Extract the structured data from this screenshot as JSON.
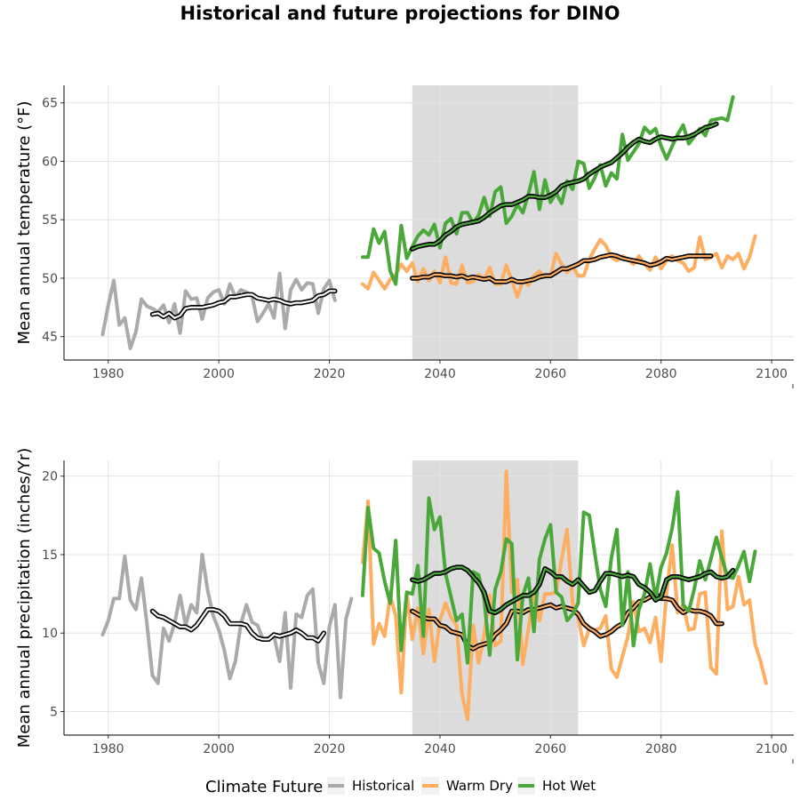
{
  "chart_data": {
    "title": "Historical and future projections for DINO",
    "legend": {
      "title": "Climate Future",
      "position": "bottom",
      "entries": [
        {
          "name": "Historical",
          "color": "#aaaaaa"
        },
        {
          "name": "Warm Dry",
          "color": "#fdae61"
        },
        {
          "name": "Hot Wet",
          "color": "#4aa83a"
        }
      ]
    },
    "panels": [
      {
        "type": "line",
        "ylabel": "Mean annual temperature (°F)",
        "xlim": [
          1972,
          2104
        ],
        "ylim": [
          43,
          66.5
        ],
        "xticks": [
          1980,
          2000,
          2020,
          2040,
          2060,
          2080,
          2100
        ],
        "yticks": [
          45,
          50,
          55,
          60,
          65
        ],
        "grid": true,
        "shaded_period": [
          2035,
          2065
        ],
        "series": [
          {
            "name": "Historical",
            "color": "#aaaaaa",
            "x_start": 1979,
            "values": [
              45.2,
              47.7,
              49.8,
              46,
              46.6,
              44,
              45.4,
              48.2,
              47.6,
              47.4,
              47.1,
              47.7,
              46.2,
              47.8,
              45.3,
              48.9,
              48.2,
              48.3,
              46.5,
              48.3,
              48.8,
              49,
              47.8,
              49.5,
              48.4,
              49,
              48.8,
              48.5,
              46.3,
              47,
              47.8,
              46.6,
              50.4,
              45.7,
              49,
              49.9,
              49,
              49.6,
              49.5,
              47,
              49.1,
              49.8,
              48.1
            ]
          },
          {
            "name": "Historical 10-yr mean",
            "color": "#000000",
            "x_start": 1988,
            "values": [
              46.9,
              47,
              46.7,
              47,
              46.6,
              46.8,
              47.4,
              47.5,
              47.5,
              47.5,
              47.6,
              47.7,
              47.9,
              48,
              48.4,
              48.4,
              48.5,
              48.6,
              48.6,
              48.3,
              48.2,
              48.1,
              48.2,
              48.1,
              47.9,
              47.8,
              47.9,
              47.9,
              48,
              48.1,
              48.5,
              48.6,
              48.9,
              48.9
            ]
          },
          {
            "name": "Warm Dry",
            "color": "#fdae61",
            "x_start": 2026,
            "values": [
              49.5,
              49.1,
              50.5,
              49.8,
              49.1,
              49.9,
              50.3,
              51.2,
              50.6,
              51.3,
              49.7,
              50.8,
              49.8,
              50.6,
              49.6,
              51.8,
              49.6,
              49.5,
              51.1,
              49.6,
              49.7,
              50.3,
              49.9,
              50.9,
              49.5,
              49.5,
              51.1,
              49.8,
              48.4,
              49.8,
              49.4,
              50.2,
              50.6,
              50.1,
              50.2,
              52.1,
              51.2,
              50.5,
              51,
              50.2,
              50.2,
              51.6,
              52.5,
              53.3,
              52.8,
              51.8,
              51.5,
              51.9,
              51.6,
              51.2,
              51.9,
              51.2,
              50.7,
              51.8,
              50.8,
              51.5,
              51.9,
              51.5,
              51.3,
              50.6,
              50.9,
              53.5,
              51.6,
              51.8,
              52.1,
              50.9,
              51.9,
              51.6,
              52.1,
              50.8,
              51.8,
              53.6
            ]
          },
          {
            "name": "Warm Dry 10-yr mean",
            "color": "#000000",
            "x_start": 2035,
            "values": [
              50,
              50,
              50.1,
              50.1,
              50.3,
              50.3,
              50.2,
              50.2,
              50.1,
              50.2,
              50,
              50.1,
              50,
              49.9,
              50,
              49.7,
              49.7,
              49.7,
              49.9,
              49.7,
              49.7,
              49.8,
              49.9,
              50.1,
              50.2,
              50.2,
              50.5,
              50.8,
              50.8,
              51,
              51.2,
              51.5,
              51.5,
              51.6,
              51.8,
              51.9,
              52,
              51.9,
              51.7,
              51.6,
              51.5,
              51.4,
              51.3,
              51.1,
              51.2,
              51.4,
              51.7,
              51.6,
              51.7,
              51.8,
              51.9,
              51.9,
              51.9,
              51.9,
              51.9
            ]
          },
          {
            "name": "Hot Wet",
            "color": "#4aa83a",
            "x_start": 2026,
            "values": [
              51.8,
              51.8,
              54.2,
              53,
              54,
              50.6,
              49.5,
              54.5,
              51.7,
              52.7,
              53.6,
              54.1,
              53.7,
              54.6,
              52.6,
              54.7,
              55.1,
              53.8,
              55.6,
              55.6,
              54.7,
              55.4,
              56.9,
              55.3,
              57.4,
              57.8,
              54.7,
              55.3,
              56.3,
              55.6,
              57.2,
              59.1,
              55.9,
              58.4,
              56.5,
              57.3,
              56.4,
              58.3,
              57.6,
              60,
              59.8,
              57.7,
              58.6,
              59.7,
              57.9,
              59,
              58.5,
              62.3,
              60.1,
              60.8,
              61.5,
              62.9,
              62.4,
              62.8,
              61.3,
              60.2,
              61.3,
              62.3,
              63.1,
              61.5,
              62.1,
              62.8,
              62.2,
              63.5,
              63.6,
              63.7,
              63.5,
              65.5
            ]
          },
          {
            "name": "Hot Wet 10-yr mean",
            "color": "#000000",
            "x_start": 2035,
            "values": [
              52.5,
              52.7,
              52.8,
              52.9,
              52.9,
              53.2,
              53.7,
              54,
              54.4,
              54.6,
              54.7,
              54.8,
              54.9,
              55.2,
              55.6,
              55.9,
              56.2,
              56.3,
              56.3,
              56.5,
              56.7,
              57,
              57,
              56.9,
              56.9,
              57.1,
              57.4,
              57.9,
              58.1,
              58.2,
              58.3,
              58.5,
              58.9,
              59.2,
              59.5,
              59.7,
              59.9,
              60.3,
              60.7,
              61.2,
              61.6,
              61.9,
              61.7,
              61.6,
              61.9,
              62.1,
              62,
              61.9,
              62,
              62,
              62.1,
              62.3,
              62.6,
              62.9,
              63,
              63.2
            ]
          }
        ]
      },
      {
        "type": "line",
        "ylabel": "Mean annual precipitation (inches/Yr)",
        "xlim": [
          1972,
          2104
        ],
        "ylim": [
          3.5,
          21
        ],
        "xticks": [
          1980,
          2000,
          2020,
          2040,
          2060,
          2080,
          2100
        ],
        "yticks": [
          5,
          10,
          15,
          20
        ],
        "grid": true,
        "shaded_period": [
          2035,
          2065
        ],
        "series": [
          {
            "name": "Historical",
            "color": "#aaaaaa",
            "x_start": 1979,
            "values": [
              9.9,
              10.8,
              12.2,
              12.2,
              14.9,
              12.1,
              11.5,
              13.5,
              10.6,
              7.3,
              6.8,
              10.3,
              9.5,
              10.6,
              12.4,
              10.5,
              11.8,
              11.3,
              15,
              12.7,
              11.1,
              10.2,
              8.9,
              7.1,
              8.2,
              10.6,
              11.8,
              10.7,
              10.5,
              9.6,
              9.7,
              9.8,
              8.2,
              11.3,
              6.5,
              11.2,
              11,
              12.4,
              12.8,
              8.1,
              6.8,
              10.4,
              11.8,
              5.9,
              10.9,
              12.2
            ]
          },
          {
            "name": "Historical 10-yr mean",
            "color": "#000000",
            "x_start": 1988,
            "values": [
              11.4,
              11.1,
              11,
              10.8,
              10.6,
              10.4,
              10.4,
              10.2,
              10.5,
              11,
              11.5,
              11.5,
              11.4,
              11.1,
              10.6,
              10.6,
              10.6,
              10.5,
              10,
              9.7,
              9.6,
              9.6,
              9.9,
              9.8,
              9.9,
              10,
              10.2,
              10,
              9.7,
              9.7,
              9.5,
              10
            ]
          },
          {
            "name": "Warm Dry",
            "color": "#fdae61",
            "x_start": 2026,
            "values": [
              14.5,
              18.4,
              9.3,
              10.6,
              9.8,
              12.4,
              11.1,
              6.2,
              12.6,
              9.6,
              11.6,
              8.7,
              11.5,
              8.2,
              10.8,
              11.9,
              11,
              10.5,
              6.1,
              4.5,
              10.5,
              8.1,
              9.9,
              12.4,
              9.2,
              9.5,
              20.3,
              12.6,
              13.4,
              8,
              10.3,
              12.6,
              10.8,
              12.5,
              12.5,
              12.6,
              14.7,
              16.6,
              11.9,
              11,
              9.2,
              10.3,
              10.2,
              10.3,
              11.1,
              7.7,
              7.2,
              8.5,
              9.8,
              12,
              10.1,
              10.3,
              9.4,
              11,
              8.2,
              12.6,
              15.6,
              11.3,
              11.8,
              10.2,
              10.3,
              12.5,
              12.6,
              7.8,
              7.4,
              16.5,
              11.5,
              11.7,
              13.6,
              11.8,
              12.1,
              9.3,
              8.2,
              6.8
            ]
          },
          {
            "name": "Warm Dry 10-yr mean",
            "color": "#000000",
            "x_start": 2035,
            "values": [
              11.4,
              11.2,
              11,
              10.9,
              10.9,
              10.5,
              10.4,
              10.1,
              10,
              9.9,
              9.2,
              9,
              9.2,
              9.3,
              9.4,
              9.9,
              10.2,
              10.6,
              11.4,
              11.4,
              11.3,
              11.5,
              11.5,
              11.6,
              11.7,
              11.8,
              11.6,
              11.7,
              11.6,
              11.5,
              11.2,
              10.6,
              10.3,
              10.1,
              9.8,
              9.9,
              10.1,
              10.4,
              10.6,
              11.3,
              11.6,
              12,
              12.1,
              12.3,
              12.5,
              12.2,
              12.2,
              12.1,
              11.6,
              11.3,
              11.5,
              11.4,
              11.4,
              11.3,
              11.1,
              10.6,
              10.6
            ]
          },
          {
            "name": "Hot Wet",
            "color": "#4aa83a",
            "x_start": 2026,
            "values": [
              12.4,
              18,
              15.4,
              15.1,
              13.3,
              11.9,
              15.9,
              8.9,
              12.6,
              12.5,
              14.3,
              9.8,
              18.6,
              16.6,
              17.4,
              13.8,
              12.3,
              10.8,
              11.2,
              8.1,
              13.9,
              13.7,
              12.2,
              8.6,
              12.8,
              13.9,
              16,
              15.7,
              8.3,
              12.4,
              13.5,
              10.1,
              14.7,
              16,
              16.9,
              12.6,
              12.3,
              10.8,
              11.2,
              11.9,
              17.7,
              17.5,
              15.1,
              12.8,
              11.7,
              14.8,
              16.6,
              10.5,
              13.9,
              9.2,
              11.5,
              12.5,
              14.4,
              12.2,
              14.2,
              15.1,
              16.7,
              19,
              11.8,
              11.4,
              12.8,
              14.6,
              13.4,
              14.7,
              16.1,
              14.8,
              13.6,
              13.5,
              14.3,
              15.2,
              13.3,
              15.2
            ]
          },
          {
            "name": "Hot Wet 10-yr mean",
            "color": "#000000",
            "x_start": 2035,
            "values": [
              13.4,
              13.3,
              13.4,
              13.6,
              13.8,
              13.8,
              13.9,
              14.1,
              14.2,
              14.2,
              14,
              13.6,
              13.2,
              12.6,
              11.4,
              11.3,
              11.5,
              11.8,
              12,
              12.2,
              12.4,
              12.4,
              12.6,
              13.1,
              14.1,
              13.9,
              13.6,
              13.6,
              13.3,
              13.1,
              13.4,
              13,
              12.6,
              12.7,
              13.3,
              13.8,
              13.8,
              13.7,
              13.6,
              13.7,
              13.6,
              13.1,
              12.9,
              12.6,
              12.1,
              12.3,
              13.4,
              13.6,
              13.6,
              13.5,
              13.4,
              13.5,
              13.6,
              13.8,
              13.9,
              13.6,
              13.5,
              13.6,
              14
            ]
          }
        ]
      }
    ]
  }
}
